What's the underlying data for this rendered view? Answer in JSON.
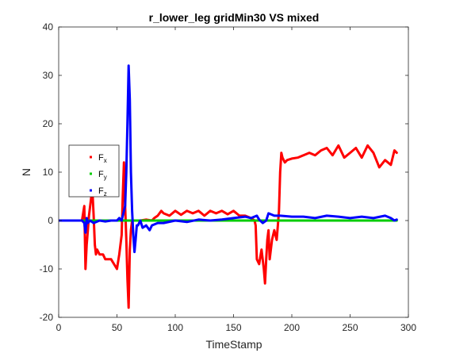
{
  "chart_data": {
    "type": "line",
    "title": "r_lower_leg gridMin30 VS mixed",
    "xlabel": "TimeStamp",
    "ylabel": "N",
    "xlim": [
      0,
      300
    ],
    "ylim": [
      -20,
      40
    ],
    "xticks": [
      "0",
      "50",
      "100",
      "150",
      "200",
      "250",
      "300"
    ],
    "yticks": [
      "-20",
      "-10",
      "0",
      "10",
      "20",
      "30",
      "40"
    ],
    "grid": false,
    "legend_position": "left",
    "series": [
      {
        "name": "F",
        "subscript": "x",
        "color": "#ff0000",
        "x": [
          0,
          20,
          22,
          23,
          24,
          25,
          26,
          27,
          28,
          29,
          30,
          31,
          32,
          33,
          35,
          38,
          40,
          45,
          50,
          52,
          54,
          55,
          56,
          57,
          58,
          59,
          60,
          61,
          62,
          63,
          64,
          65,
          68,
          70,
          75,
          80,
          82,
          85,
          88,
          90,
          95,
          100,
          105,
          110,
          115,
          120,
          125,
          130,
          135,
          140,
          145,
          150,
          155,
          160,
          165,
          168,
          169,
          170,
          172,
          174,
          176,
          177,
          178,
          179,
          180,
          181,
          183,
          185,
          187,
          188,
          189,
          190,
          191,
          192,
          194,
          196,
          200,
          205,
          210,
          215,
          220,
          225,
          230,
          235,
          240,
          245,
          250,
          255,
          260,
          265,
          270,
          275,
          280,
          285,
          288,
          290
        ],
        "y": [
          0,
          0,
          3,
          -10,
          -5,
          -2,
          1,
          3,
          5,
          6,
          1,
          -5,
          -7,
          -6,
          -7,
          -7,
          -8,
          -8,
          -10,
          -7,
          -3,
          5,
          12,
          3,
          -4,
          -12,
          -18,
          -6,
          -2,
          0,
          0,
          0,
          0,
          0,
          0.2,
          0,
          0.5,
          1,
          2,
          1.5,
          1,
          2,
          1.2,
          2,
          1.5,
          2,
          1,
          2,
          1.5,
          2,
          1.3,
          2,
          1,
          1,
          0.5,
          0,
          -1,
          -8,
          -9,
          -6,
          -10,
          -13,
          -8,
          -4,
          -2,
          -8,
          -4,
          -2,
          -4,
          -1,
          2,
          10,
          14,
          13,
          12,
          12.5,
          12.8,
          13,
          13.5,
          14,
          13.5,
          14.5,
          15,
          13.5,
          15.5,
          13,
          14,
          15,
          13,
          15.5,
          14,
          11,
          12.5,
          11.5,
          14.5,
          14
        ]
      },
      {
        "name": "F",
        "subscript": "y",
        "color": "#00cc00",
        "x": [
          0,
          50,
          100,
          150,
          200,
          250,
          290
        ],
        "y": [
          0,
          0,
          0,
          0,
          0,
          0,
          0
        ]
      },
      {
        "name": "F",
        "subscript": "z",
        "color": "#0000ff",
        "x": [
          0,
          20,
          22,
          23,
          24,
          25,
          27,
          30,
          35,
          40,
          45,
          50,
          52,
          54,
          56,
          57,
          58,
          59,
          60,
          61,
          62,
          63,
          64,
          65,
          66,
          67,
          68,
          70,
          72,
          75,
          78,
          80,
          85,
          90,
          100,
          110,
          120,
          130,
          140,
          150,
          160,
          165,
          170,
          172,
          175,
          178,
          180,
          185,
          190,
          200,
          210,
          220,
          230,
          240,
          250,
          260,
          270,
          280,
          285,
          288,
          290
        ],
        "y": [
          0,
          0,
          -0.5,
          -2.5,
          0.5,
          -0.5,
          0,
          -0.5,
          0,
          -0.2,
          0,
          0,
          0.5,
          0,
          2,
          3,
          10,
          20,
          32,
          25,
          10,
          2,
          -3,
          -6.5,
          -4,
          -1,
          -1,
          0,
          -1.5,
          -1,
          -2,
          -1,
          -0.5,
          -0.5,
          0,
          -0.3,
          0.2,
          0,
          0.2,
          0.5,
          0.8,
          0.5,
          1,
          0.2,
          -0.5,
          0,
          1.5,
          1,
          1,
          0.8,
          0.8,
          0.5,
          1,
          0.8,
          0.5,
          0.8,
          0.5,
          1,
          0.5,
          0,
          0.2
        ]
      }
    ]
  }
}
